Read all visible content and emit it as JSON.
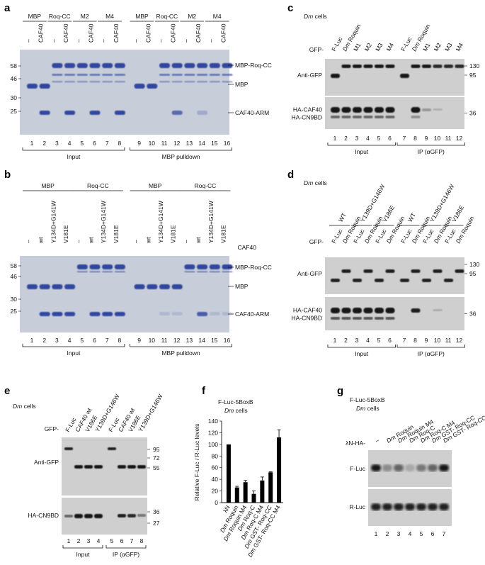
{
  "panel_a": {
    "letter": "a",
    "groups": [
      "MBP",
      "Roq-CC",
      "M2",
      "M4",
      "MBP",
      "Roq-CC",
      "M2",
      "M4"
    ],
    "lane_labels": [
      "–",
      "CAF40",
      "–",
      "CAF40",
      "–",
      "CAF40",
      "–",
      "CAF40",
      "–",
      "CAF40",
      "–",
      "CAF40",
      "–",
      "CAF40",
      "–",
      "CAF40"
    ],
    "mw": [
      "58",
      "46",
      "30",
      "25"
    ],
    "band_labels": [
      "MBP-Roq-CC",
      "MBP",
      "CAF40-ARM"
    ],
    "lanes": [
      "1",
      "2",
      "3",
      "4",
      "5",
      "6",
      "7",
      "8",
      "9",
      "10",
      "11",
      "12",
      "13",
      "14",
      "15",
      "16"
    ],
    "sections": [
      "Input",
      "MBP pulldown"
    ]
  },
  "panel_b": {
    "letter": "b",
    "groups": [
      "MBP",
      "Roq-CC",
      "MBP",
      "Roq-CC"
    ],
    "lane_labels": [
      "–",
      "wt",
      "Y134D+G141W",
      "V181E",
      "–",
      "wt",
      "Y134D+G141W",
      "V181E",
      "–",
      "wt",
      "Y134D+G141W",
      "V181E",
      "–",
      "wt",
      "Y134D+G141W",
      "V181E"
    ],
    "row_label": "CAF40",
    "mw": [
      "58",
      "46",
      "30",
      "25"
    ],
    "band_labels": [
      "MBP-Roq-CC",
      "MBP",
      "CAF40-ARM"
    ],
    "lanes": [
      "1",
      "2",
      "3",
      "4",
      "5",
      "6",
      "7",
      "8",
      "9",
      "10",
      "11",
      "12",
      "13",
      "14",
      "15",
      "16"
    ],
    "sections": [
      "Input",
      "MBP pulldown"
    ]
  },
  "panel_c": {
    "letter": "c",
    "cells": "Dm cells",
    "gfp_prefix": "GFP-",
    "lane_labels": [
      "F-Luc",
      "Dm Roquin",
      "M1",
      "M2",
      "M3",
      "M4",
      "F-Luc",
      "Dm Roquin",
      "M1",
      "M2",
      "M3",
      "M4"
    ],
    "blot_labels": [
      "Anti-GFP",
      "HA-CAF40",
      "HA-CN9BD"
    ],
    "mw": [
      "130",
      "95",
      "36"
    ],
    "lanes": [
      "1",
      "2",
      "3",
      "4",
      "5",
      "6",
      "7",
      "8",
      "9",
      "10",
      "11",
      "12"
    ],
    "sections": [
      "Input",
      "IP (αGFP)"
    ]
  },
  "panel_d": {
    "letter": "d",
    "cells": "Dm cells",
    "gfp_prefix": "GFP-",
    "groups": [
      "WT",
      "Y139D+G146W",
      "V186E",
      "WT",
      "Y139D+G146W",
      "V186E"
    ],
    "lane_labels": [
      "F-Luc",
      "Dm Roquin",
      "F-Luc",
      "Dm Roquin",
      "F-Luc",
      "Dm Roquin",
      "F-Luc",
      "Dm Roquin",
      "F-Luc",
      "Dm Roquin",
      "F-Luc",
      "Dm Roquin"
    ],
    "blot_labels": [
      "Anti-GFP",
      "HA-CAF40",
      "HA-CN9BD"
    ],
    "mw": [
      "130",
      "95",
      "36"
    ],
    "lanes": [
      "1",
      "2",
      "3",
      "4",
      "5",
      "6",
      "7",
      "8",
      "9",
      "10",
      "11",
      "12"
    ],
    "sections": [
      "Input",
      "IP (αGFP)"
    ]
  },
  "panel_e": {
    "letter": "e",
    "cells": "Dm cells",
    "gfp_prefix": "GFP-",
    "lane_labels": [
      "F-Luc",
      "CAF40 wt",
      "V186E",
      "Y139D+G146W",
      "F-Luc",
      "CAF40 wt",
      "V186E",
      "Y139D+G146W"
    ],
    "blot_labels": [
      "Anti-GFP",
      "HA-CN9BD"
    ],
    "mw": [
      "95",
      "72",
      "55",
      "36",
      "27"
    ],
    "lanes": [
      "1",
      "2",
      "3",
      "4",
      "5",
      "6",
      "7",
      "8"
    ],
    "sections": [
      "Input",
      "IP (αGFP)"
    ]
  },
  "panel_f": {
    "letter": "f",
    "reporter": "F-Luc-5BoxB",
    "cells": "Dm cells"
  },
  "chart_data": {
    "type": "bar",
    "categories": [
      "λN",
      "Dm Roquin",
      "Dm Roquin M4",
      "Dm Roq-C",
      "Dm Roq-C M4",
      "Dm GST- Roq-CC",
      "Dm GST- Roq-CC M4"
    ],
    "values": [
      100,
      26,
      35,
      15,
      38,
      52,
      112
    ],
    "errors": [
      0,
      2,
      3,
      5,
      6,
      1,
      13
    ],
    "ylabel": "Relative F-Luc / R-Luc levels",
    "yticks": [
      "0",
      "20",
      "40",
      "60",
      "80",
      "100",
      "120",
      "140"
    ],
    "ylim": [
      0,
      140
    ]
  },
  "panel_g": {
    "letter": "g",
    "reporter": "F-Luc-5BoxB",
    "cells": "Dm cells",
    "row_label": "λN-HA-",
    "lane_labels": [
      "–",
      "Dm Roquin",
      "Dm Roquin M4",
      "Dm Roq-C",
      "Dm Roq-C M4",
      "Dm GST- Roq-CC",
      "Dm GST- Roq-CC M4"
    ],
    "blot_labels": [
      "F-Luc",
      "R-Luc"
    ],
    "lanes": [
      "1",
      "2",
      "3",
      "4",
      "5",
      "6",
      "7"
    ]
  }
}
